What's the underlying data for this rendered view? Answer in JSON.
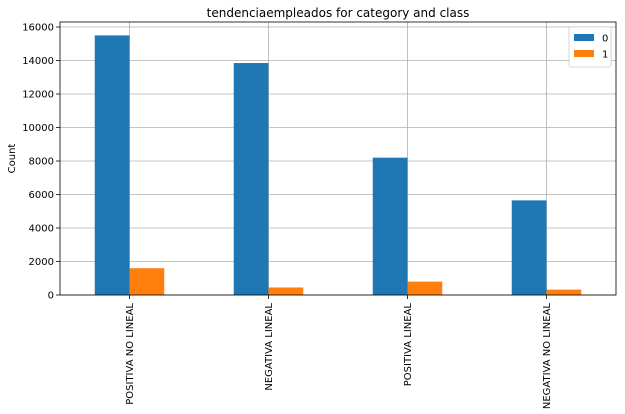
{
  "chart_data": {
    "type": "bar",
    "title": "tendenciaempleados for category and class",
    "xlabel": "",
    "ylabel": "Count",
    "categories": [
      "POSITIVA NO LINEAL",
      "NEGATIVA LINEAL",
      "POSITIVA LINEAL",
      "NEGATIVA NO LINEAL"
    ],
    "series": [
      {
        "name": "0",
        "color": "#1f77b4",
        "values": [
          15500,
          13850,
          8200,
          5650
        ]
      },
      {
        "name": "1",
        "color": "#ff7f0e",
        "values": [
          1600,
          450,
          800,
          320
        ]
      }
    ],
    "ylim": [
      0,
      16300
    ],
    "yticks": [
      0,
      2000,
      4000,
      6000,
      8000,
      10000,
      12000,
      14000,
      16000
    ],
    "grid": true,
    "legend_position": "top-right"
  }
}
